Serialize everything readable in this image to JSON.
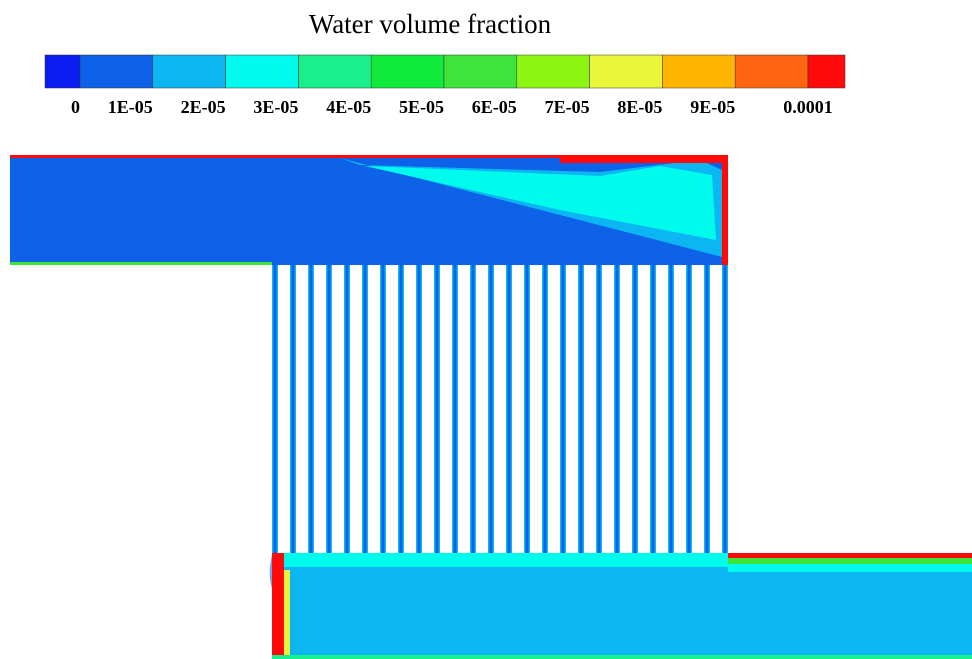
{
  "title": "Water volume fraction",
  "colorbar": {
    "colors": [
      "#0a1cf0",
      "#0d62e8",
      "#0cb6f2",
      "#00fbec",
      "#19f08c",
      "#10ea3a",
      "#3ee43a",
      "#8cf512",
      "#eaf53a",
      "#ffb400",
      "#ff6410",
      "#ff0a0a"
    ],
    "labels": [
      "0",
      "1E-05",
      "2E-05",
      "3E-05",
      "4E-05",
      "5E-05",
      "6E-05",
      "7E-05",
      "8E-05",
      "9E-05",
      "0.0001"
    ]
  }
}
